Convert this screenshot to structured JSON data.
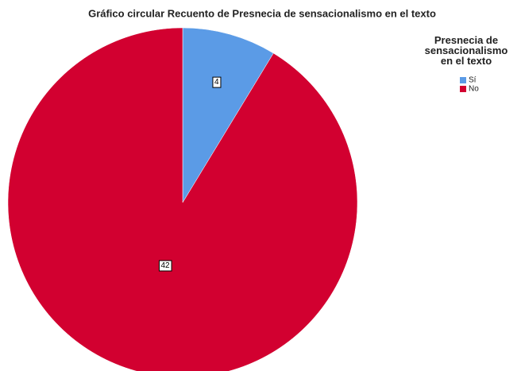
{
  "chart_data": {
    "type": "pie",
    "title": "Gráfico circular Recuento de Presnecia de sensacionalismo en el texto",
    "legend_title": "Presnecia de sensacionalismo en el texto",
    "categories": [
      "Sí",
      "No"
    ],
    "values": [
      4,
      42
    ],
    "colors": [
      "#5b9be6",
      "#d20030"
    ],
    "legend": "top-right"
  }
}
